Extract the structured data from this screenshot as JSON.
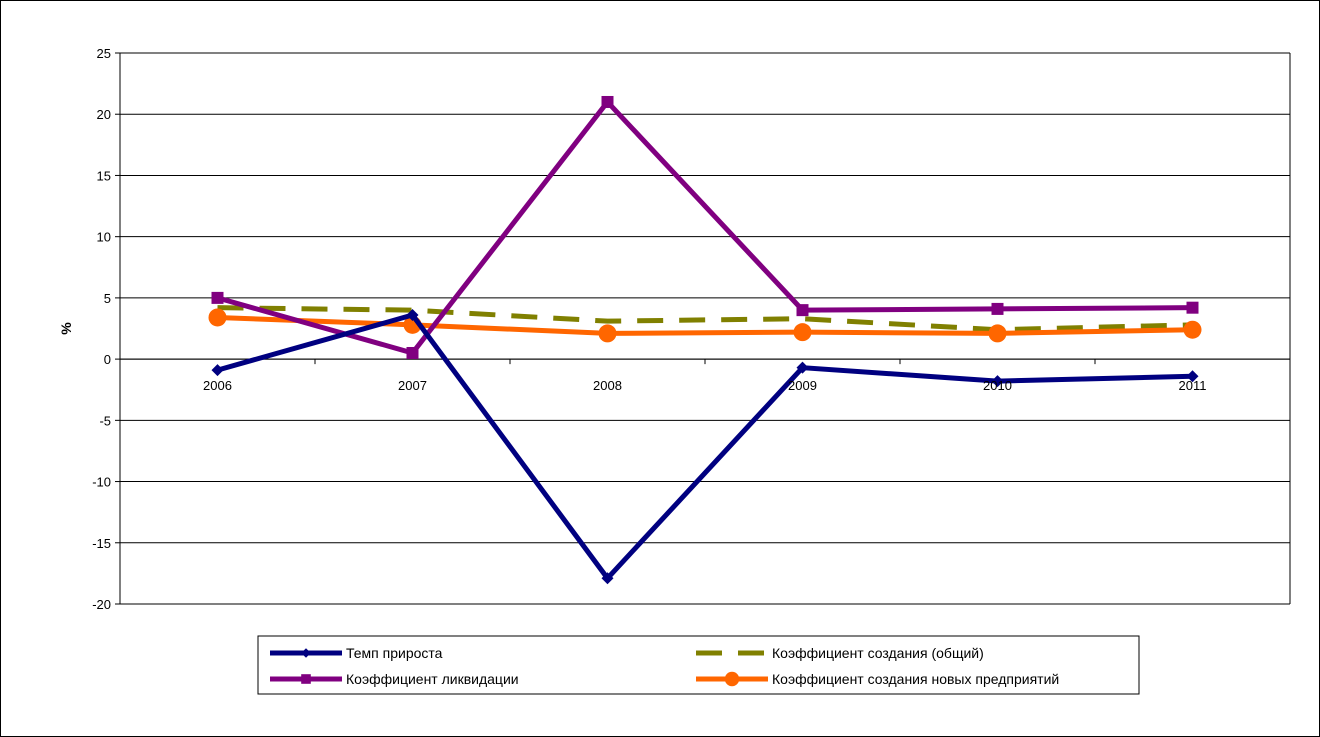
{
  "chart_data": {
    "type": "line",
    "title": "",
    "xlabel": "",
    "ylabel": "%",
    "ylim": [
      -20,
      25
    ],
    "ytick_step": 5,
    "categories": [
      "2006",
      "2007",
      "2008",
      "2009",
      "2010",
      "2011"
    ],
    "grid": "horizontal",
    "legend_position": "bottom",
    "series": [
      {
        "name": "Темп прироста",
        "values": [
          -0.9,
          3.6,
          -17.9,
          -0.7,
          -1.8,
          -1.4
        ],
        "color": "#000080",
        "marker": "diamond",
        "dash": "solid"
      },
      {
        "name": "Коэффициент ликвидации",
        "values": [
          5.0,
          0.5,
          21.0,
          4.0,
          4.1,
          4.2
        ],
        "color": "#800080",
        "marker": "square",
        "dash": "solid"
      },
      {
        "name": "Коэффициент создания (общий)",
        "values": [
          4.2,
          4.0,
          3.1,
          3.3,
          2.4,
          2.8
        ],
        "color": "#808000",
        "marker": "none",
        "dash": "dashed"
      },
      {
        "name": "Коэффициент создания новых предприятий",
        "values": [
          3.4,
          2.8,
          2.1,
          2.2,
          2.1,
          2.4
        ],
        "color": "#FF6600",
        "marker": "circle",
        "dash": "solid"
      }
    ]
  }
}
